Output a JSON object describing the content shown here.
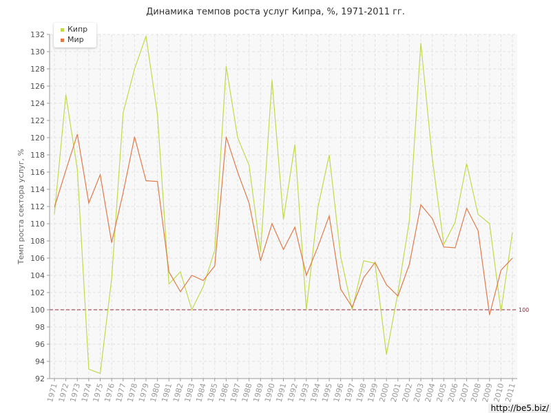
{
  "chart_data": {
    "type": "line",
    "title": "Динамика темпов роста услуг Кипра, %, 1971-2011 гг.",
    "xlabel": "",
    "ylabel": "Темп роста сектора услуг, %",
    "ylim": [
      92,
      132
    ],
    "yticks": [
      92,
      94,
      96,
      98,
      100,
      102,
      104,
      106,
      108,
      110,
      112,
      114,
      116,
      118,
      120,
      122,
      124,
      126,
      128,
      130,
      132
    ],
    "grid": true,
    "legend_position": "top-left",
    "x": [
      "1971",
      "1972",
      "1973",
      "1974",
      "1975",
      "1976",
      "1977",
      "1978",
      "1979",
      "1980",
      "1981",
      "1982",
      "1983",
      "1984",
      "1985",
      "1986",
      "1987",
      "1988",
      "1989",
      "1990",
      "1991",
      "1992",
      "1993",
      "1994",
      "1995",
      "1996",
      "1997",
      "1998",
      "1999",
      "2000",
      "2001",
      "2002",
      "2003",
      "2004",
      "2005",
      "2006",
      "2007",
      "2008",
      "2009",
      "2010",
      "2011"
    ],
    "series": [
      {
        "name": "Кипр",
        "color": "#c0da4a",
        "values": [
          111.1,
          125.0,
          116.3,
          93.1,
          92.6,
          103.6,
          122.9,
          128.0,
          131.8,
          122.7,
          103.0,
          104.4,
          100.0,
          102.7,
          106.9,
          128.3,
          120.0,
          116.8,
          106.7,
          126.7,
          110.5,
          119.2,
          100.0,
          111.8,
          118.0,
          106.2,
          100.0,
          105.7,
          105.4,
          94.8,
          102.0,
          110.4,
          131.0,
          117.6,
          107.6,
          110.2,
          117.0,
          111.1,
          110.0,
          99.8,
          109.0
        ]
      },
      {
        "name": "Мир",
        "color": "#e07a49",
        "values": [
          111.9,
          116.2,
          120.4,
          112.4,
          115.7,
          107.8,
          113.6,
          120.1,
          115.0,
          114.9,
          104.4,
          102.1,
          104.0,
          103.4,
          105.1,
          120.1,
          116.0,
          112.4,
          105.7,
          110.0,
          107.0,
          109.6,
          104.0,
          107.3,
          110.9,
          102.4,
          100.3,
          103.7,
          105.5,
          102.9,
          101.6,
          105.3,
          112.2,
          110.6,
          107.3,
          107.2,
          111.8,
          109.2,
          99.4,
          104.6,
          106.0
        ]
      }
    ],
    "reference_line": {
      "value": 100,
      "label": "100",
      "color": "#8b2a3a"
    }
  },
  "watermark": "http://be5.biz/"
}
